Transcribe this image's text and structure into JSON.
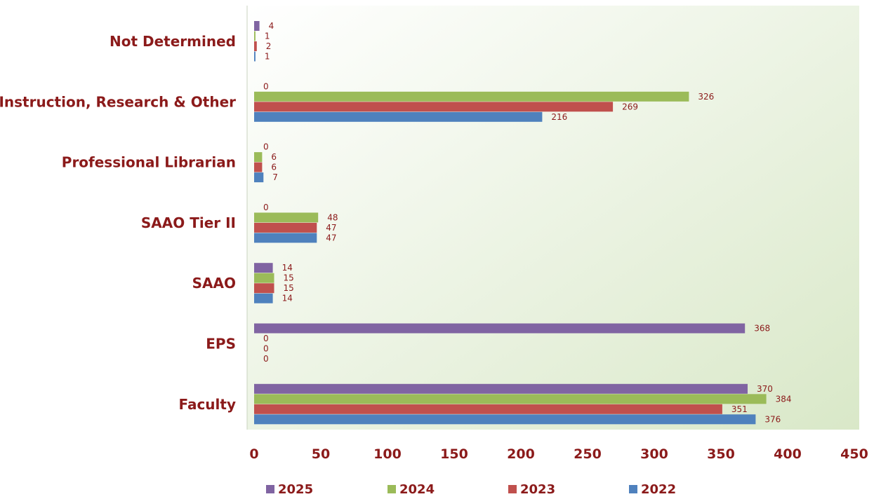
{
  "chart_data": {
    "type": "bar",
    "orientation": "horizontal",
    "title": "",
    "xlabel": "",
    "ylabel": "",
    "categories": [
      "Not Determined",
      "Instruction, Research & Other",
      "Professional Librarian",
      "SAAO Tier II",
      "SAAO",
      "EPS",
      "Faculty"
    ],
    "series": [
      {
        "name": "2025",
        "color": "#8064a2",
        "values": [
          4,
          0,
          0,
          0,
          14,
          368,
          370
        ]
      },
      {
        "name": "2024",
        "color": "#9bbb59",
        "values": [
          1,
          326,
          6,
          48,
          15,
          0,
          384
        ]
      },
      {
        "name": "2023",
        "color": "#c0504d",
        "values": [
          2,
          269,
          6,
          47,
          15,
          0,
          351
        ]
      },
      {
        "name": "2022",
        "color": "#4f81bd",
        "values": [
          1,
          216,
          7,
          47,
          14,
          0,
          376
        ]
      }
    ],
    "xlim": [
      0,
      450
    ],
    "xticks": [
      0,
      50,
      100,
      150,
      200,
      250,
      300,
      350,
      400,
      450
    ],
    "grid": false,
    "legend_position": "bottom",
    "colors": {
      "text": "#8b1a1a",
      "plot_gradient_top": "#ffffff",
      "plot_gradient_bottom": "#d9e8c8",
      "axis": "#c9d3bf"
    }
  }
}
